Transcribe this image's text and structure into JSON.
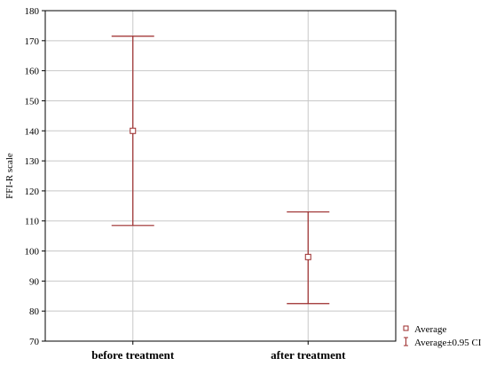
{
  "chart_data": {
    "type": "errorbar",
    "ylabel": "FFI-R scale",
    "ylim": [
      70,
      180
    ],
    "yticks": [
      70,
      80,
      90,
      100,
      110,
      120,
      130,
      140,
      150,
      160,
      170,
      180
    ],
    "grid": true,
    "categories": [
      "before treatment",
      "after treatment"
    ],
    "series": [
      {
        "name": "Average",
        "values": [
          140,
          98
        ],
        "ci_low": [
          108.5,
          82.5
        ],
        "ci_high": [
          171.5,
          113
        ]
      }
    ],
    "legend": {
      "position": "bottom-right",
      "entries": [
        "Average",
        "Average±0.95 CI"
      ]
    },
    "colors": {
      "series": "#9b2a2a",
      "grid": "#c8c8c8",
      "axis": "#000000"
    }
  }
}
